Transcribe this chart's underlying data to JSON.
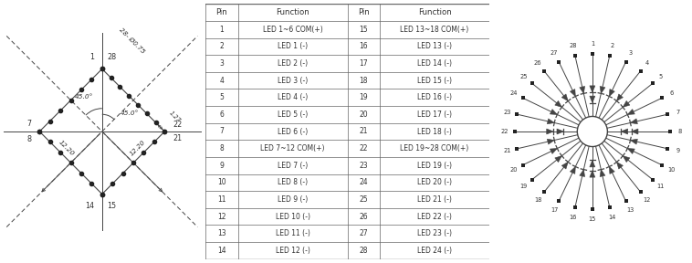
{
  "bg_color": "#ffffff",
  "line_color": "#444444",
  "text_color": "#333333",
  "table_data": {
    "pins_left": [
      1,
      2,
      3,
      4,
      5,
      6,
      7,
      8,
      9,
      10,
      11,
      12,
      13,
      14
    ],
    "functions_left": [
      "LED 1~6 COM(+)",
      "LED 1 (-)",
      "LED 2 (-)",
      "LED 3 (-)",
      "LED 4 (-)",
      "LED 5 (-)",
      "LED 6 (-)",
      "LED 7~12 COM(+)",
      "LED 7 (-)",
      "LED 8 (-)",
      "LED 9 (-)",
      "LED 10 (-)",
      "LED 11 (-)",
      "LED 12 (-)"
    ],
    "pins_right": [
      15,
      16,
      17,
      18,
      19,
      20,
      21,
      22,
      23,
      24,
      25,
      26,
      27,
      28
    ],
    "functions_right": [
      "LED 13~18 COM(+)",
      "LED 13 (-)",
      "LED 14 (-)",
      "LED 15 (-)",
      "LED 16 (-)",
      "LED 17 (-)",
      "LED 18 (-)",
      "LED 19~28 COM(+)",
      "LED 19 (-)",
      "LED 20 (-)",
      "LED 21 (-)",
      "LED 22 (-)",
      "LED 23 (-)",
      "LED 24 (-)"
    ]
  },
  "left_panel": {
    "diamond_half": 0.95,
    "annotations": {
      "angle1": "45.0°",
      "angle2": "45.0°",
      "dim1": "12.20",
      "dim2": "12.20",
      "dim3": "1.27",
      "dim4": "28- Ø0.75"
    }
  },
  "right_panel": {
    "n_leds": 28,
    "inner_r": 0.25,
    "outer_r": 1.28,
    "led1_r": 0.72,
    "led2_r": 0.55,
    "label_r": 1.45,
    "tri_size": 0.075
  }
}
